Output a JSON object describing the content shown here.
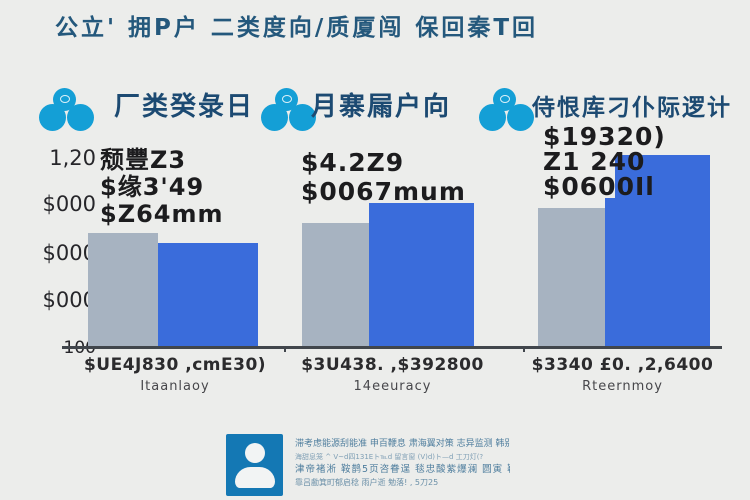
{
  "title": "公立' 拥P户 二类度向/质厦闯 保回秦T回",
  "colors": {
    "background": "#ecedeb",
    "title_text": "#24587c",
    "header_text": "#1c4a72",
    "icon_blue": "#149fd6",
    "bar_gray": "#a7b3c1",
    "bar_blue": "#3a6cdb",
    "axis_line": "#41464c",
    "value_text": "#1c1c1e",
    "footer_avatar": "#1478b4",
    "footer_text": "#4f7e9e"
  },
  "y_axis": {
    "ticks": [
      "1,20",
      "$000",
      "$000",
      "$000",
      "100"
    ]
  },
  "columns": [
    {
      "icon": "people-cluster-icon",
      "header": "厂类癸彔日",
      "value_lines": [
        "颓豐Z3",
        "$缘3'49",
        "$Z64mm"
      ],
      "axis_label": "$UE4J830 ,cmE30)",
      "axis_sublabel": "Itaanlaoy"
    },
    {
      "icon": "people-cluster-icon",
      "header": "月寨屚户向",
      "value_lines": [
        "$4.2Z9",
        "$0067mum",
        ""
      ],
      "axis_label": "$3U438. ,$392800",
      "axis_sublabel": "14eeuracy"
    },
    {
      "icon": "people-cluster-icon",
      "header": "侍恨库刁仆际逻计",
      "value_lines": [
        "$19320)",
        "Z1 240",
        "$0600Il"
      ],
      "axis_label": "$3340 £0. ,2,6400",
      "axis_sublabel": "Rteernmoy"
    }
  ],
  "footer": {
    "icon": "person-avatar-icon",
    "lines": [
      "滞考虑能源刮能准 申百鞭息 肃海翼对策 志异监测 韩别隆",
      "海甜息笼 ^ V~d四131Eト℡d 留言窗 (V)d)ト—d 工刀灯(?",
      "津帝褚淅 鞍鹊5页咨眷逞 毯忠酸紫爆澜 圆寅 鞘",
      "靠吕勴箕町郁启稔 雨户逝 勉落! , 5刀25"
    ]
  },
  "chart_data": {
    "type": "bar",
    "title": "公立' 拥P户 二类度向/质厦闯 保回秦T回",
    "categories": [
      "厂类癸彔日",
      "月寨屚户向",
      "侍恨库刁仆际逻计"
    ],
    "series": [
      {
        "name": "gray",
        "color": "#a7b3c1",
        "values": [
          114,
          124,
          139
        ]
      },
      {
        "name": "blue",
        "color": "#3a6cdb",
        "values": [
          104,
          144,
          192
        ]
      }
    ],
    "value_note": "relative units estimated from bar pixel heights; axis tick text is illegible/garbled in source",
    "y_tick_labels": [
      "1,20",
      "$000",
      "$000",
      "$000",
      "100"
    ],
    "x_tick_labels": [
      "$UE4J830 ,cmE30)",
      "$3U438. ,$392800",
      "$3340 £0. ,2,6400"
    ],
    "legend_position": "none",
    "grid": false,
    "ylim": [
      0,
      200
    ]
  }
}
